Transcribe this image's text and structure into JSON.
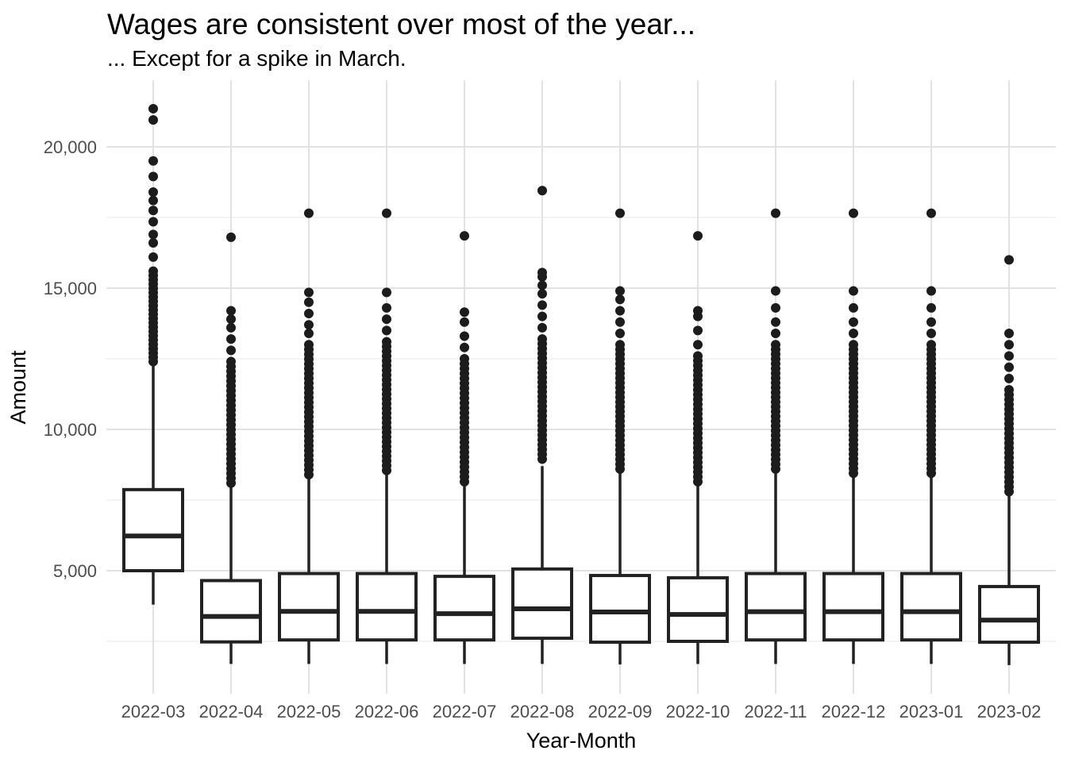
{
  "chart_data": {
    "type": "boxplot",
    "title": "Wages are consistent over most of the year...",
    "subtitle": "... Except for a spike in March.",
    "xlabel": "Year-Month",
    "ylabel": "Amount",
    "grid": true,
    "legend": "none",
    "colors": {
      "background": "#ffffff",
      "box_stroke": "#222222",
      "box_fill": "#ffffff",
      "outlier_fill": "#1c1c1c",
      "grid_major": "#e2e2e2",
      "grid_minor": "#efefef",
      "tick_label": "#4d4d4d",
      "text": "#000000"
    },
    "y_axis": {
      "ticks": [
        5000,
        10000,
        15000,
        20000
      ],
      "tick_labels": [
        "5,000",
        "10,000",
        "15,000",
        "20,000"
      ],
      "minor_ticks": [
        2500,
        7500,
        12500,
        17500
      ],
      "range_shown": [
        650,
        22350
      ]
    },
    "categories": [
      "2022-03",
      "2022-04",
      "2022-05",
      "2022-06",
      "2022-07",
      "2022-08",
      "2022-09",
      "2022-10",
      "2022-11",
      "2022-12",
      "2023-01",
      "2023-02"
    ],
    "boxes": [
      {
        "label": "2022-03",
        "whisker_low": 3800,
        "q1": 5000,
        "median": 6230,
        "q3": 7870,
        "whisker_high": 12320,
        "outliers_dense": {
          "from": 12400,
          "to": 15600,
          "count": 22
        },
        "outliers": [
          16100,
          16600,
          16900,
          17350,
          17750,
          18100,
          18400,
          18950,
          19500,
          20950,
          21350
        ]
      },
      {
        "label": "2022-04",
        "whisker_low": 1700,
        "q1": 2480,
        "median": 3380,
        "q3": 4650,
        "whisker_high": 8060,
        "outliers_dense": {
          "from": 8100,
          "to": 12400,
          "count": 26
        },
        "outliers": [
          12800,
          13200,
          13600,
          13900,
          14200,
          16800
        ]
      },
      {
        "label": "2022-05",
        "whisker_low": 1700,
        "q1": 2550,
        "median": 3560,
        "q3": 4900,
        "whisker_high": 8350,
        "outliers_dense": {
          "from": 8400,
          "to": 13000,
          "count": 28
        },
        "outliers": [
          13400,
          13700,
          14100,
          14500,
          14850,
          17650
        ]
      },
      {
        "label": "2022-06",
        "whisker_low": 1700,
        "q1": 2550,
        "median": 3560,
        "q3": 4900,
        "whisker_high": 8500,
        "outliers_dense": {
          "from": 8550,
          "to": 13100,
          "count": 28
        },
        "outliers": [
          13500,
          13900,
          14300,
          14850,
          17650
        ]
      },
      {
        "label": "2022-07",
        "whisker_low": 1700,
        "q1": 2550,
        "median": 3480,
        "q3": 4800,
        "whisker_high": 8100,
        "outliers_dense": {
          "from": 8150,
          "to": 12500,
          "count": 26
        },
        "outliers": [
          12900,
          13300,
          13800,
          14150,
          16850
        ]
      },
      {
        "label": "2022-08",
        "whisker_low": 1700,
        "q1": 2610,
        "median": 3650,
        "q3": 5060,
        "whisker_high": 8700,
        "outliers_dense": {
          "from": 8950,
          "to": 13200,
          "count": 26
        },
        "outliers": [
          13600,
          14000,
          14400,
          14800,
          15100,
          15400,
          15550,
          18450
        ]
      },
      {
        "label": "2022-09",
        "whisker_low": 1680,
        "q1": 2470,
        "median": 3540,
        "q3": 4830,
        "whisker_high": 8550,
        "outliers_dense": {
          "from": 8600,
          "to": 13000,
          "count": 27
        },
        "outliers": [
          13400,
          13800,
          14200,
          14600,
          14900,
          17650
        ]
      },
      {
        "label": "2022-10",
        "whisker_low": 1700,
        "q1": 2500,
        "median": 3450,
        "q3": 4750,
        "whisker_high": 8100,
        "outliers_dense": {
          "from": 8150,
          "to": 12600,
          "count": 27
        },
        "outliers": [
          13000,
          13500,
          14000,
          14200,
          16850
        ]
      },
      {
        "label": "2022-11",
        "whisker_low": 1700,
        "q1": 2550,
        "median": 3550,
        "q3": 4900,
        "whisker_high": 8550,
        "outliers_dense": {
          "from": 8600,
          "to": 13000,
          "count": 27
        },
        "outliers": [
          13400,
          13800,
          14300,
          14900,
          17650
        ]
      },
      {
        "label": "2022-12",
        "whisker_low": 1700,
        "q1": 2550,
        "median": 3550,
        "q3": 4900,
        "whisker_high": 8450,
        "outliers_dense": {
          "from": 8450,
          "to": 13000,
          "count": 28
        },
        "outliers": [
          13400,
          13800,
          14300,
          14900,
          17650
        ]
      },
      {
        "label": "2023-01",
        "whisker_low": 1700,
        "q1": 2550,
        "median": 3550,
        "q3": 4900,
        "whisker_high": 8450,
        "outliers_dense": {
          "from": 8450,
          "to": 13000,
          "count": 28
        },
        "outliers": [
          13400,
          13800,
          14300,
          14900,
          17650
        ]
      },
      {
        "label": "2023-02",
        "whisker_low": 1660,
        "q1": 2470,
        "median": 3250,
        "q3": 4440,
        "whisker_high": 7750,
        "outliers_dense": {
          "from": 7800,
          "to": 11400,
          "count": 22
        },
        "outliers": [
          11800,
          12200,
          12600,
          13000,
          13400,
          16000
        ]
      }
    ]
  }
}
